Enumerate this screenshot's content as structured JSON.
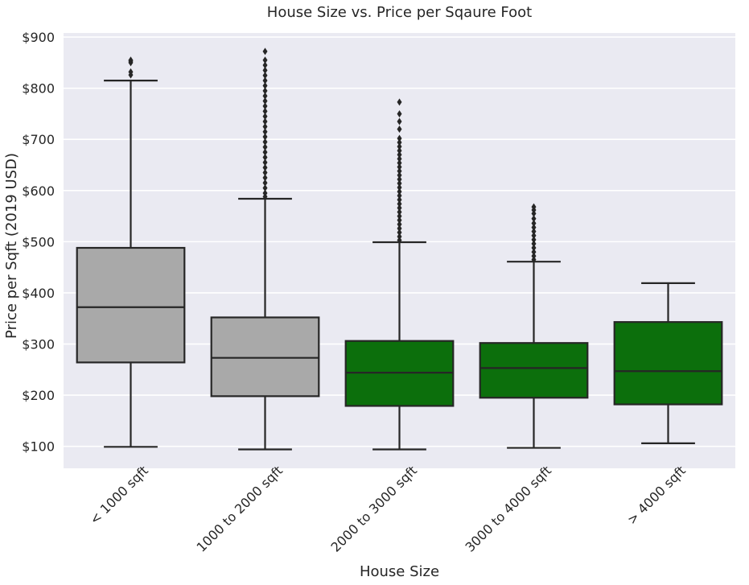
{
  "chart_data": {
    "type": "box",
    "title": "House Size vs. Price per Sqaure Foot",
    "xlabel": "House Size",
    "ylabel": "Price per Sqft (2019 USD)",
    "ylim": [
      57,
      908
    ],
    "yticks": [
      100,
      200,
      300,
      400,
      500,
      600,
      700,
      800,
      900
    ],
    "ytick_labels": [
      "$100",
      "$200",
      "$300",
      "$400",
      "$500",
      "$600",
      "$700",
      "$800",
      "$900"
    ],
    "grid": true,
    "categories": [
      "< 1000 sqft",
      "1000 to 2000 sqft",
      "2000 to 3000 sqft",
      "3000 to 4000 sqft",
      "> 4000 sqft"
    ],
    "boxes": [
      {
        "whisker_low": 99,
        "q1": 264,
        "median": 372,
        "q3": 488,
        "whisker_high": 815,
        "outliers": [
          826,
          832,
          850,
          853,
          855
        ],
        "color": "#a9a9a9"
      },
      {
        "whisker_low": 94,
        "q1": 198,
        "median": 273,
        "q3": 352,
        "whisker_high": 584,
        "outliers": [
          588,
          595,
          605,
          615,
          625,
          635,
          645,
          655,
          665,
          675,
          685,
          695,
          705,
          715,
          725,
          735,
          745,
          755,
          765,
          775,
          785,
          795,
          805,
          815,
          825,
          835,
          845,
          855,
          872
        ],
        "color": "#a9a9a9"
      },
      {
        "whisker_low": 94,
        "q1": 179,
        "median": 244,
        "q3": 306,
        "whisker_high": 499,
        "outliers": [
          503,
          510,
          518,
          526,
          534,
          542,
          550,
          558,
          566,
          574,
          582,
          590,
          598,
          606,
          614,
          622,
          630,
          638,
          646,
          654,
          662,
          670,
          678,
          686,
          694,
          702,
          720,
          735,
          750,
          773
        ],
        "color": "#0c6f0c"
      },
      {
        "whisker_low": 97,
        "q1": 195,
        "median": 253,
        "q3": 302,
        "whisker_high": 461,
        "outliers": [
          465,
          472,
          480,
          488,
          496,
          504,
          512,
          520,
          528,
          536,
          545,
          555,
          562,
          568
        ],
        "color": "#0c6f0c"
      },
      {
        "whisker_low": 106,
        "q1": 182,
        "median": 247,
        "q3": 343,
        "whisker_high": 419,
        "outliers": [],
        "color": "#0c6f0c"
      }
    ],
    "colors": {
      "background": "#eaeaf2",
      "grid": "#ffffff",
      "line": "#262626",
      "gray_box": "#a9a9a9",
      "green_box": "#0c6f0c"
    }
  }
}
